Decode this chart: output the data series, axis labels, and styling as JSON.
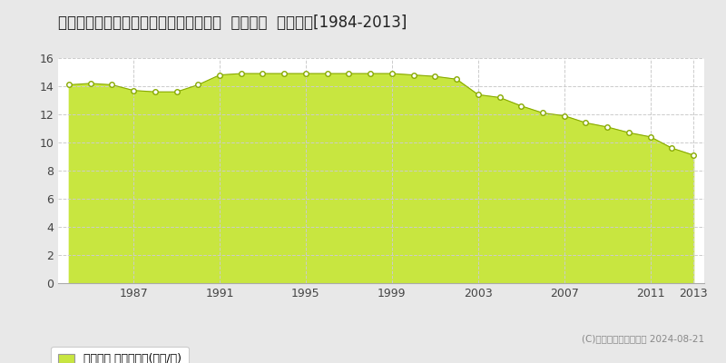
{
  "title": "北海道帯広市西１０条南２丁目２番６外  地価公示  地価推移[1984-2013]",
  "years": [
    1984,
    1985,
    1986,
    1987,
    1988,
    1989,
    1990,
    1991,
    1992,
    1993,
    1994,
    1995,
    1996,
    1997,
    1998,
    1999,
    2000,
    2001,
    2002,
    2003,
    2004,
    2005,
    2006,
    2007,
    2008,
    2009,
    2010,
    2011,
    2012,
    2013
  ],
  "values": [
    14.1,
    14.2,
    14.1,
    13.7,
    13.6,
    13.6,
    14.1,
    14.8,
    14.9,
    14.9,
    14.9,
    14.9,
    14.9,
    14.9,
    14.9,
    14.9,
    14.8,
    14.7,
    14.5,
    13.4,
    13.2,
    12.6,
    12.1,
    11.9,
    11.4,
    11.1,
    10.7,
    10.4,
    9.6,
    9.1
  ],
  "fill_color": "#c8e640",
  "line_color": "#88aa00",
  "marker_color": "#ffffff",
  "marker_edge_color": "#88aa00",
  "background_color": "#e8e8e8",
  "plot_bg_color": "#ffffff",
  "grid_color": "#cccccc",
  "ylim": [
    0,
    16
  ],
  "yticks": [
    0,
    2,
    4,
    6,
    8,
    10,
    12,
    14,
    16
  ],
  "xtick_labels": [
    "1987",
    "1991",
    "1995",
    "1999",
    "2003",
    "2007",
    "2011",
    "2013"
  ],
  "xtick_positions": [
    1987,
    1991,
    1995,
    1999,
    2003,
    2007,
    2011,
    2013
  ],
  "legend_label": "地価公示 平均坪単価(万円/坪)",
  "legend_color": "#c8e640",
  "copyright_text": "(C)土地価格ドットコム 2024-08-21",
  "title_fontsize": 12,
  "axis_fontsize": 9,
  "legend_fontsize": 9
}
